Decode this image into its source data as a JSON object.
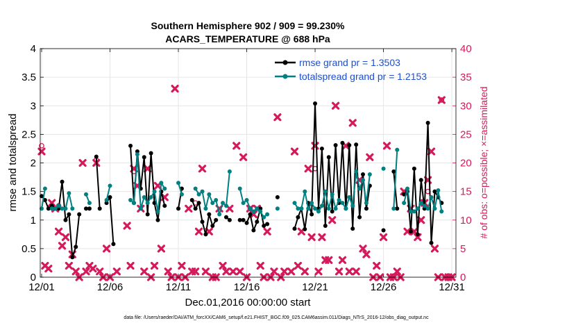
{
  "chart_data": {
    "type": "line",
    "title_line1": "Southern Hemisphere 902 / 909 = 99.230%",
    "title_line2": "ACARS_TEMPERATURE @ 688 hPa",
    "xlabel": "Dec.01,2016 00:00:00 start",
    "ylabel_left": "rmse and totalspread",
    "ylabel_right": "# of obs: o=possible; ×=assimilated",
    "footnote": "data file: /Users/raeder/DAI/ATM_forcXX/CAM6_setup/f.e21.FHIST_BGC.f09_025.CAM6assim.011/Diags_NTrS_2016-12/obs_diag_output.nc",
    "xlim": [
      0.9,
      31.3
    ],
    "ylim_left": [
      0,
      4
    ],
    "ylim_right": [
      0,
      40
    ],
    "x_ticks": [
      1,
      6,
      11,
      16,
      21,
      26,
      31
    ],
    "x_tick_labels": [
      "12/01",
      "12/06",
      "12/11",
      "12/16",
      "12/21",
      "12/26",
      "12/31"
    ],
    "y_ticks_left": [
      0,
      0.5,
      1,
      1.5,
      2,
      2.5,
      3,
      3.5,
      4
    ],
    "y_tick_labels_left": [
      "0",
      "0.5",
      "1",
      "1.5",
      "2",
      "2.5",
      "3",
      "3.5",
      "4"
    ],
    "y_ticks_right": [
      0,
      5,
      10,
      15,
      20,
      25,
      30,
      35,
      40
    ],
    "y_tick_labels_right": [
      "0",
      "5",
      "10",
      "15",
      "20",
      "25",
      "30",
      "35",
      "40"
    ],
    "grid": true,
    "legend_position": "top-right",
    "colors": {
      "rmse": "#000000",
      "spread": "#008080",
      "obs": "#d6195b",
      "legend_text": "#1f4fd0",
      "grid": "#e6e6e6"
    },
    "series": [
      {
        "name": "rmse",
        "legend_label": "rmse grand pr = 1.3503",
        "segments": [
          [
            [
              1.0,
              1.42
            ],
            [
              1.25,
              1.35
            ],
            [
              1.5,
              1.2
            ],
            [
              1.75,
              1.25
            ],
            [
              2.0,
              1.2
            ],
            [
              2.25,
              1.2
            ],
            [
              2.5,
              1.67
            ],
            [
              2.75,
              1.0
            ],
            [
              3.0,
              1.1
            ],
            [
              3.25,
              0.35
            ],
            [
              3.5,
              0.53
            ],
            [
              3.75,
              1.1
            ]
          ],
          [
            [
              4.25,
              1.2
            ],
            [
              4.5,
              1.2
            ]
          ],
          [
            [
              5.0,
              2.11
            ],
            [
              5.25,
              1.2
            ]
          ],
          [
            [
              5.75,
              1.3
            ],
            [
              6.0,
              1.4
            ],
            [
              6.25,
              0.58
            ]
          ],
          [
            [
              7.5,
              2.3
            ],
            [
              7.75,
              1.3
            ],
            [
              8.0,
              2.2
            ],
            [
              8.25,
              1.55
            ],
            [
              8.5,
              2.1
            ],
            [
              8.75,
              1.1
            ],
            [
              9.0,
              2.17
            ],
            [
              9.25,
              1.3
            ],
            [
              9.5,
              1.0
            ],
            [
              9.75,
              1.5
            ],
            [
              10.0,
              1.25
            ]
          ],
          [
            [
              11.0,
              1.2
            ],
            [
              11.25,
              1.55
            ]
          ],
          [
            [
              12.0,
              1.35
            ],
            [
              12.25,
              1.2
            ],
            [
              12.5,
              1.3
            ],
            [
              12.75,
              0.97
            ],
            [
              13.0,
              0.75
            ],
            [
              13.25,
              1.1
            ],
            [
              13.5,
              0.9
            ],
            [
              13.75,
              1.0
            ]
          ],
          [
            [
              14.5,
              1.05
            ],
            [
              14.75,
              1.0
            ]
          ],
          [
            [
              15.5,
              1.0
            ],
            [
              15.75,
              1.0
            ]
          ],
          [
            [
              16.0,
              0.95
            ],
            [
              16.25,
              1.1
            ],
            [
              16.5,
              0.82
            ],
            [
              16.75,
              0.97
            ],
            [
              17.0,
              1.2
            ],
            [
              17.25,
              0.9
            ],
            [
              17.5,
              0.93
            ]
          ],
          [
            [
              18.25,
              1.4
            ]
          ],
          [
            [
              19.5,
              0.85
            ],
            [
              19.75,
              1.05
            ],
            [
              20.0,
              1.2
            ],
            [
              20.25,
              0.84
            ],
            [
              20.5,
              1.3
            ],
            [
              20.75,
              1.1
            ],
            [
              21.0,
              3.04
            ],
            [
              21.25,
              1.2
            ],
            [
              21.5,
              2.25
            ],
            [
              21.75,
              0.9
            ],
            [
              22.0,
              2.1
            ],
            [
              22.25,
              1.15
            ],
            [
              22.5,
              2.31
            ],
            [
              22.75,
              1.3
            ],
            [
              23.0,
              2.35
            ],
            [
              23.25,
              1.2
            ],
            [
              23.5,
              2.31
            ],
            [
              23.75,
              0.85
            ],
            [
              24.0,
              2.32
            ],
            [
              24.25,
              1.05
            ],
            [
              24.5,
              1.8
            ],
            [
              24.75,
              1.2
            ],
            [
              25.0,
              1.6
            ]
          ],
          [
            [
              26.0,
              0.82
            ]
          ],
          [
            [
              26.75,
              1.85
            ],
            [
              27.0,
              1.2
            ]
          ],
          [
            [
              27.5,
              1.45
            ],
            [
              27.75,
              1.5
            ],
            [
              28.0,
              0.8
            ],
            [
              28.25,
              1.9
            ],
            [
              28.5,
              0.75
            ],
            [
              28.75,
              1.7
            ],
            [
              29.0,
              1.2
            ],
            [
              29.25,
              2.7
            ],
            [
              29.5,
              0.6
            ],
            [
              29.75,
              1.5
            ],
            [
              30.0,
              1.4
            ],
            [
              30.25,
              1.3
            ]
          ]
        ]
      },
      {
        "name": "totalspread",
        "legend_label": "totalspread grand pr = 1.2153",
        "segments": [
          [
            [
              1.0,
              1.2
            ],
            [
              1.25,
              1.55
            ]
          ],
          [
            [
              1.75,
              1.2
            ],
            [
              2.0,
              1.2
            ],
            [
              2.25,
              1.25
            ],
            [
              2.5,
              1.2
            ],
            [
              2.75,
              1.2
            ],
            [
              3.0,
              1.47
            ],
            [
              3.25,
              1.2
            ]
          ],
          [
            [
              4.25,
              1.45
            ],
            [
              4.5,
              1.3
            ]
          ],
          [
            [
              5.75,
              1.35
            ],
            [
              6.0,
              1.6
            ]
          ],
          [
            [
              7.5,
              1.35
            ],
            [
              7.75,
              1.3
            ],
            [
              8.0,
              2.15
            ],
            [
              8.25,
              1.2
            ],
            [
              8.5,
              1.4
            ],
            [
              8.75,
              1.3
            ],
            [
              9.0,
              1.4
            ],
            [
              9.25,
              1.5
            ],
            [
              9.5,
              1.15
            ],
            [
              9.75,
              1.65
            ],
            [
              10.0,
              1.55
            ]
          ],
          [
            [
              11.0,
              1.65
            ],
            [
              11.25,
              1.45
            ]
          ],
          [
            [
              12.25,
              1.55
            ],
            [
              12.5,
              1.45
            ],
            [
              12.75,
              1.5
            ],
            [
              13.0,
              1.2
            ],
            [
              13.25,
              1.45
            ],
            [
              13.5,
              1.3
            ],
            [
              13.75,
              1.35
            ],
            [
              14.0,
              1.1
            ],
            [
              14.25,
              1.3
            ],
            [
              14.5,
              1.25
            ],
            [
              14.75,
              1.85
            ]
          ],
          [
            [
              15.5,
              1.55
            ],
            [
              15.75,
              1.3
            ],
            [
              16.0,
              1.35
            ],
            [
              16.25,
              1.2
            ],
            [
              16.5,
              1.15
            ],
            [
              16.75,
              1.2
            ],
            [
              17.0,
              1.15
            ],
            [
              17.25,
              1.05
            ],
            [
              17.5,
              1.1
            ]
          ],
          [
            [
              18.25,
              1.2
            ]
          ],
          [
            [
              19.5,
              1.3
            ],
            [
              19.75,
              1.2
            ],
            [
              20.0,
              1.2
            ],
            [
              20.25,
              1.5
            ],
            [
              20.5,
              1.2
            ],
            [
              20.75,
              1.3
            ],
            [
              21.0,
              1.2
            ],
            [
              21.25,
              1.15
            ],
            [
              21.5,
              1.25
            ],
            [
              21.75,
              1.5
            ],
            [
              22.0,
              1.2
            ],
            [
              22.25,
              1.45
            ],
            [
              22.5,
              1.2
            ],
            [
              22.75,
              1.35
            ],
            [
              23.0,
              1.3
            ],
            [
              23.25,
              1.2
            ],
            [
              23.5,
              1.4
            ],
            [
              23.75,
              1.25
            ],
            [
              24.0,
              1.85
            ],
            [
              24.25,
              1.55
            ],
            [
              24.5,
              1.7
            ],
            [
              24.75,
              1.3
            ],
            [
              25.0,
              1.8
            ]
          ],
          [
            [
              26.0,
              1.9
            ]
          ],
          [
            [
              26.75,
              1.2
            ],
            [
              27.0,
              2.23
            ]
          ],
          [
            [
              27.5,
              1.3
            ],
            [
              27.75,
              1.55
            ],
            [
              28.0,
              1.15
            ],
            [
              28.25,
              1.15
            ],
            [
              28.5,
              1.2
            ],
            [
              28.75,
              1.3
            ],
            [
              29.0,
              1.25
            ],
            [
              29.25,
              1.2
            ],
            [
              29.5,
              1.4
            ],
            [
              29.75,
              1.2
            ],
            [
              30.0,
              1.52
            ],
            [
              30.25,
              1.15
            ]
          ]
        ]
      }
    ],
    "obs_assimilated": [
      [
        1.0,
        22
      ],
      [
        1.25,
        2
      ],
      [
        1.5,
        1.5
      ],
      [
        1.75,
        13
      ],
      [
        2.0,
        12
      ],
      [
        2.25,
        8
      ],
      [
        2.5,
        5.5
      ],
      [
        2.75,
        7
      ],
      [
        3.0,
        2
      ],
      [
        3.25,
        4
      ],
      [
        3.5,
        1
      ],
      [
        3.75,
        0
      ],
      [
        4.0,
        20
      ],
      [
        4.25,
        1
      ],
      [
        4.5,
        2
      ],
      [
        4.75,
        1.5
      ],
      [
        5.0,
        20
      ],
      [
        5.25,
        1
      ],
      [
        5.5,
        0
      ],
      [
        5.75,
        5
      ],
      [
        6.0,
        0
      ],
      [
        6.5,
        1
      ],
      [
        7.25,
        9
      ],
      [
        7.5,
        2
      ],
      [
        7.75,
        19
      ],
      [
        8.0,
        16
      ],
      [
        8.25,
        12
      ],
      [
        8.5,
        1
      ],
      [
        8.75,
        19
      ],
      [
        9.0,
        0
      ],
      [
        9.25,
        2
      ],
      [
        9.5,
        16
      ],
      [
        9.75,
        5
      ],
      [
        10.0,
        14
      ],
      [
        10.25,
        1
      ],
      [
        10.5,
        0
      ],
      [
        10.75,
        33
      ],
      [
        11.0,
        0
      ],
      [
        11.25,
        2
      ],
      [
        11.5,
        0
      ],
      [
        11.75,
        12
      ],
      [
        12.0,
        1
      ],
      [
        12.25,
        1
      ],
      [
        12.5,
        8
      ],
      [
        12.75,
        19
      ],
      [
        13.0,
        1
      ],
      [
        13.25,
        8
      ],
      [
        13.5,
        0
      ],
      [
        13.75,
        0
      ],
      [
        14.0,
        12
      ],
      [
        14.25,
        2
      ],
      [
        14.5,
        1
      ],
      [
        14.75,
        12
      ],
      [
        15.0,
        1
      ],
      [
        15.25,
        23
      ],
      [
        15.5,
        1
      ],
      [
        15.75,
        21
      ],
      [
        16.0,
        0
      ],
      [
        16.25,
        12
      ],
      [
        16.5,
        11
      ],
      [
        16.75,
        12
      ],
      [
        17.0,
        2
      ],
      [
        17.25,
        0
      ],
      [
        17.5,
        8
      ],
      [
        17.75,
        0
      ],
      [
        18.0,
        1
      ],
      [
        18.25,
        28
      ],
      [
        18.5,
        0
      ],
      [
        18.75,
        1
      ],
      [
        19.25,
        1
      ],
      [
        19.5,
        22
      ],
      [
        19.75,
        2
      ],
      [
        20.0,
        8
      ],
      [
        20.25,
        1
      ],
      [
        20.5,
        19
      ],
      [
        20.75,
        7
      ],
      [
        21.0,
        23
      ],
      [
        21.25,
        1
      ],
      [
        21.5,
        7
      ],
      [
        21.75,
        3
      ],
      [
        22.0,
        3
      ],
      [
        22.25,
        10
      ],
      [
        22.5,
        30
      ],
      [
        22.75,
        1
      ],
      [
        23.0,
        3
      ],
      [
        23.25,
        23
      ],
      [
        23.5,
        1
      ],
      [
        23.75,
        27
      ],
      [
        24.0,
        1
      ],
      [
        24.25,
        17
      ],
      [
        24.5,
        5
      ],
      [
        24.75,
        4
      ],
      [
        25.0,
        21
      ],
      [
        25.25,
        0
      ],
      [
        25.5,
        2
      ],
      [
        25.75,
        0
      ],
      [
        26.0,
        7
      ],
      [
        26.25,
        23
      ],
      [
        26.5,
        0
      ],
      [
        26.75,
        0
      ],
      [
        27.0,
        1
      ],
      [
        27.25,
        0
      ],
      [
        27.5,
        15
      ],
      [
        27.75,
        8
      ],
      [
        28.0,
        12
      ],
      [
        28.25,
        8
      ],
      [
        28.5,
        7
      ],
      [
        28.75,
        10
      ],
      [
        29.0,
        13
      ],
      [
        29.25,
        17
      ],
      [
        29.5,
        22
      ],
      [
        29.75,
        5
      ],
      [
        30.0,
        0
      ],
      [
        30.25,
        31
      ],
      [
        30.5,
        0
      ],
      [
        30.75,
        0
      ],
      [
        31.0,
        0
      ]
    ],
    "obs_possible": [
      [
        1.0,
        23
      ],
      [
        2.25,
        12.5
      ],
      [
        5.0,
        20.5
      ],
      [
        7.75,
        18.5
      ],
      [
        12.25,
        13
      ],
      [
        16.25,
        12
      ],
      [
        21.0,
        19
      ],
      [
        29.25,
        15
      ],
      [
        30.25,
        31
      ]
    ]
  },
  "labels": {
    "legend_rmse": "rmse grand pr = 1.3503",
    "legend_spread": "totalspread grand pr = 1.2153"
  }
}
